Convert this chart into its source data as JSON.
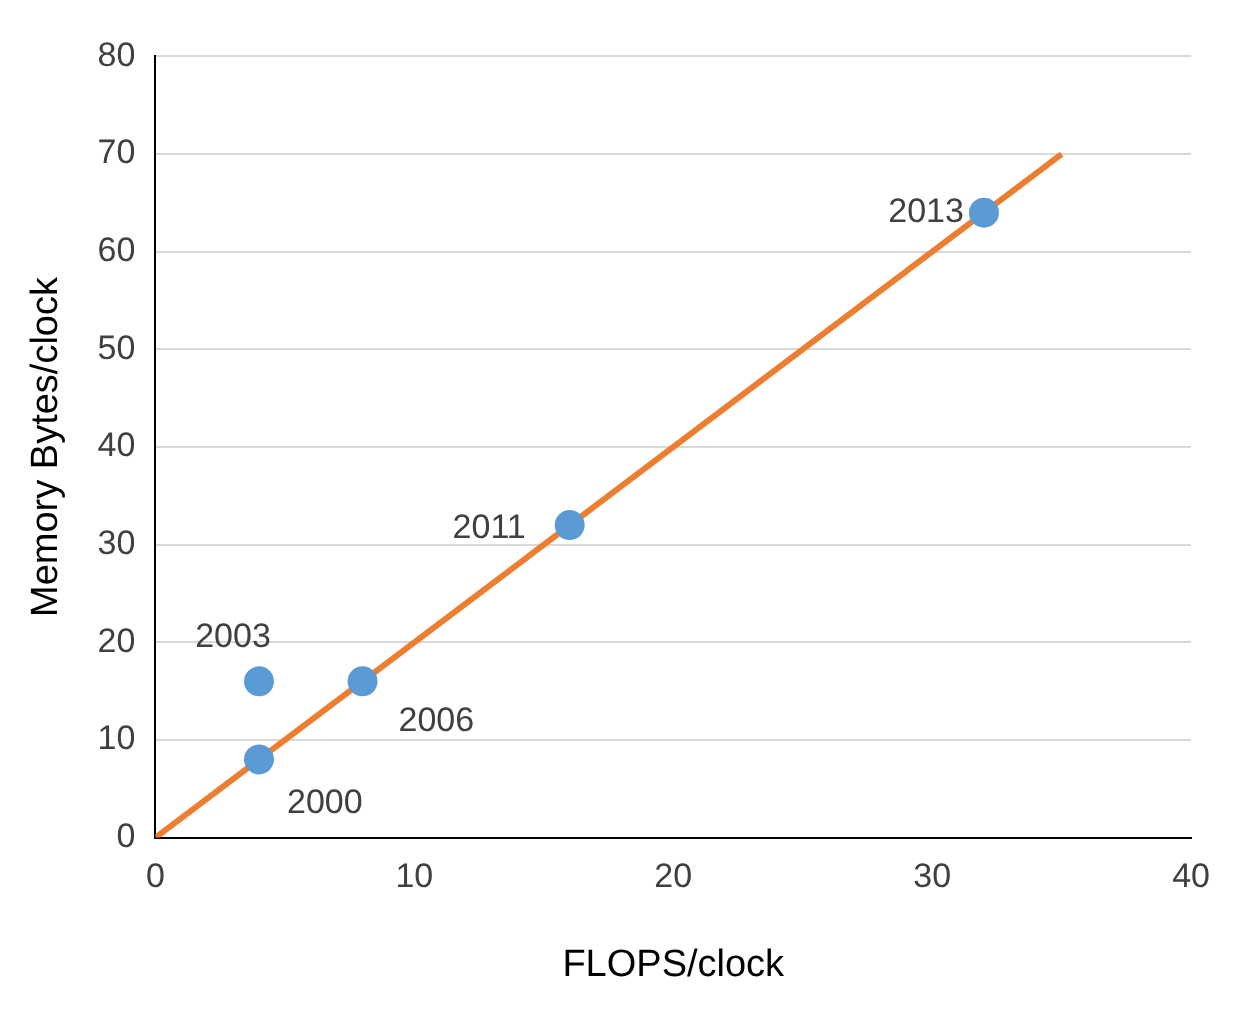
{
  "chart_data": {
    "type": "scatter",
    "xlabel": "FLOPS/clock",
    "ylabel": "Memory Bytes/clock",
    "series": [
      {
        "type": "scatter",
        "color": "#5b9bd5",
        "marker": "circle",
        "x": [
          4,
          4,
          8,
          16,
          32
        ],
        "values": [
          8,
          16,
          16,
          32,
          64
        ]
      },
      {
        "type": "line",
        "color": "#ed7d31",
        "x": [
          0,
          35
        ],
        "values": [
          0,
          70
        ]
      }
    ],
    "annotations": [
      {
        "text": "2000",
        "x": 4,
        "y": 8
      },
      {
        "text": "2003",
        "x": 4,
        "y": 16
      },
      {
        "text": "2006",
        "x": 8,
        "y": 16
      },
      {
        "text": "2011",
        "x": 16,
        "y": 32
      },
      {
        "text": "2013",
        "x": 32,
        "y": 64
      }
    ],
    "xlim": [
      0,
      40
    ],
    "xticks": [
      0,
      10,
      20,
      30,
      40
    ],
    "ylim": [
      0,
      80
    ],
    "yticks": [
      0,
      10,
      20,
      30,
      40,
      50,
      60,
      70,
      80
    ],
    "grid": "y",
    "legend": false
  }
}
